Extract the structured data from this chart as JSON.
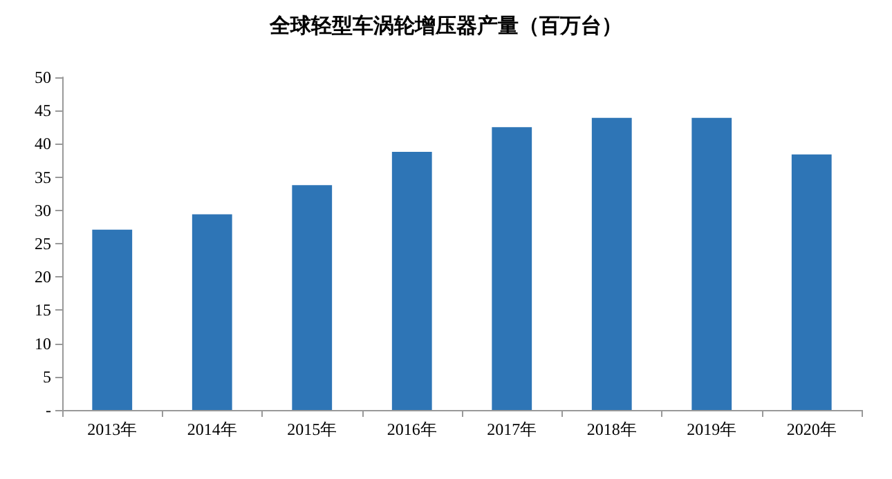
{
  "chart_data": {
    "type": "bar",
    "title": "全球轻型车涡轮增压器产量（百万台）",
    "categories": [
      "2013年",
      "2014年",
      "2015年",
      "2016年",
      "2017年",
      "2018年",
      "2019年",
      "2020年"
    ],
    "values": [
      27.1,
      29.4,
      33.8,
      38.8,
      42.5,
      43.9,
      43.9,
      38.4
    ],
    "color": "#2e75b6",
    "ylim": [
      0,
      50
    ],
    "yticks": [
      {
        "value": 0,
        "label": "-"
      },
      5,
      10,
      15,
      20,
      25,
      30,
      35,
      40,
      45,
      50
    ],
    "grid": false
  }
}
